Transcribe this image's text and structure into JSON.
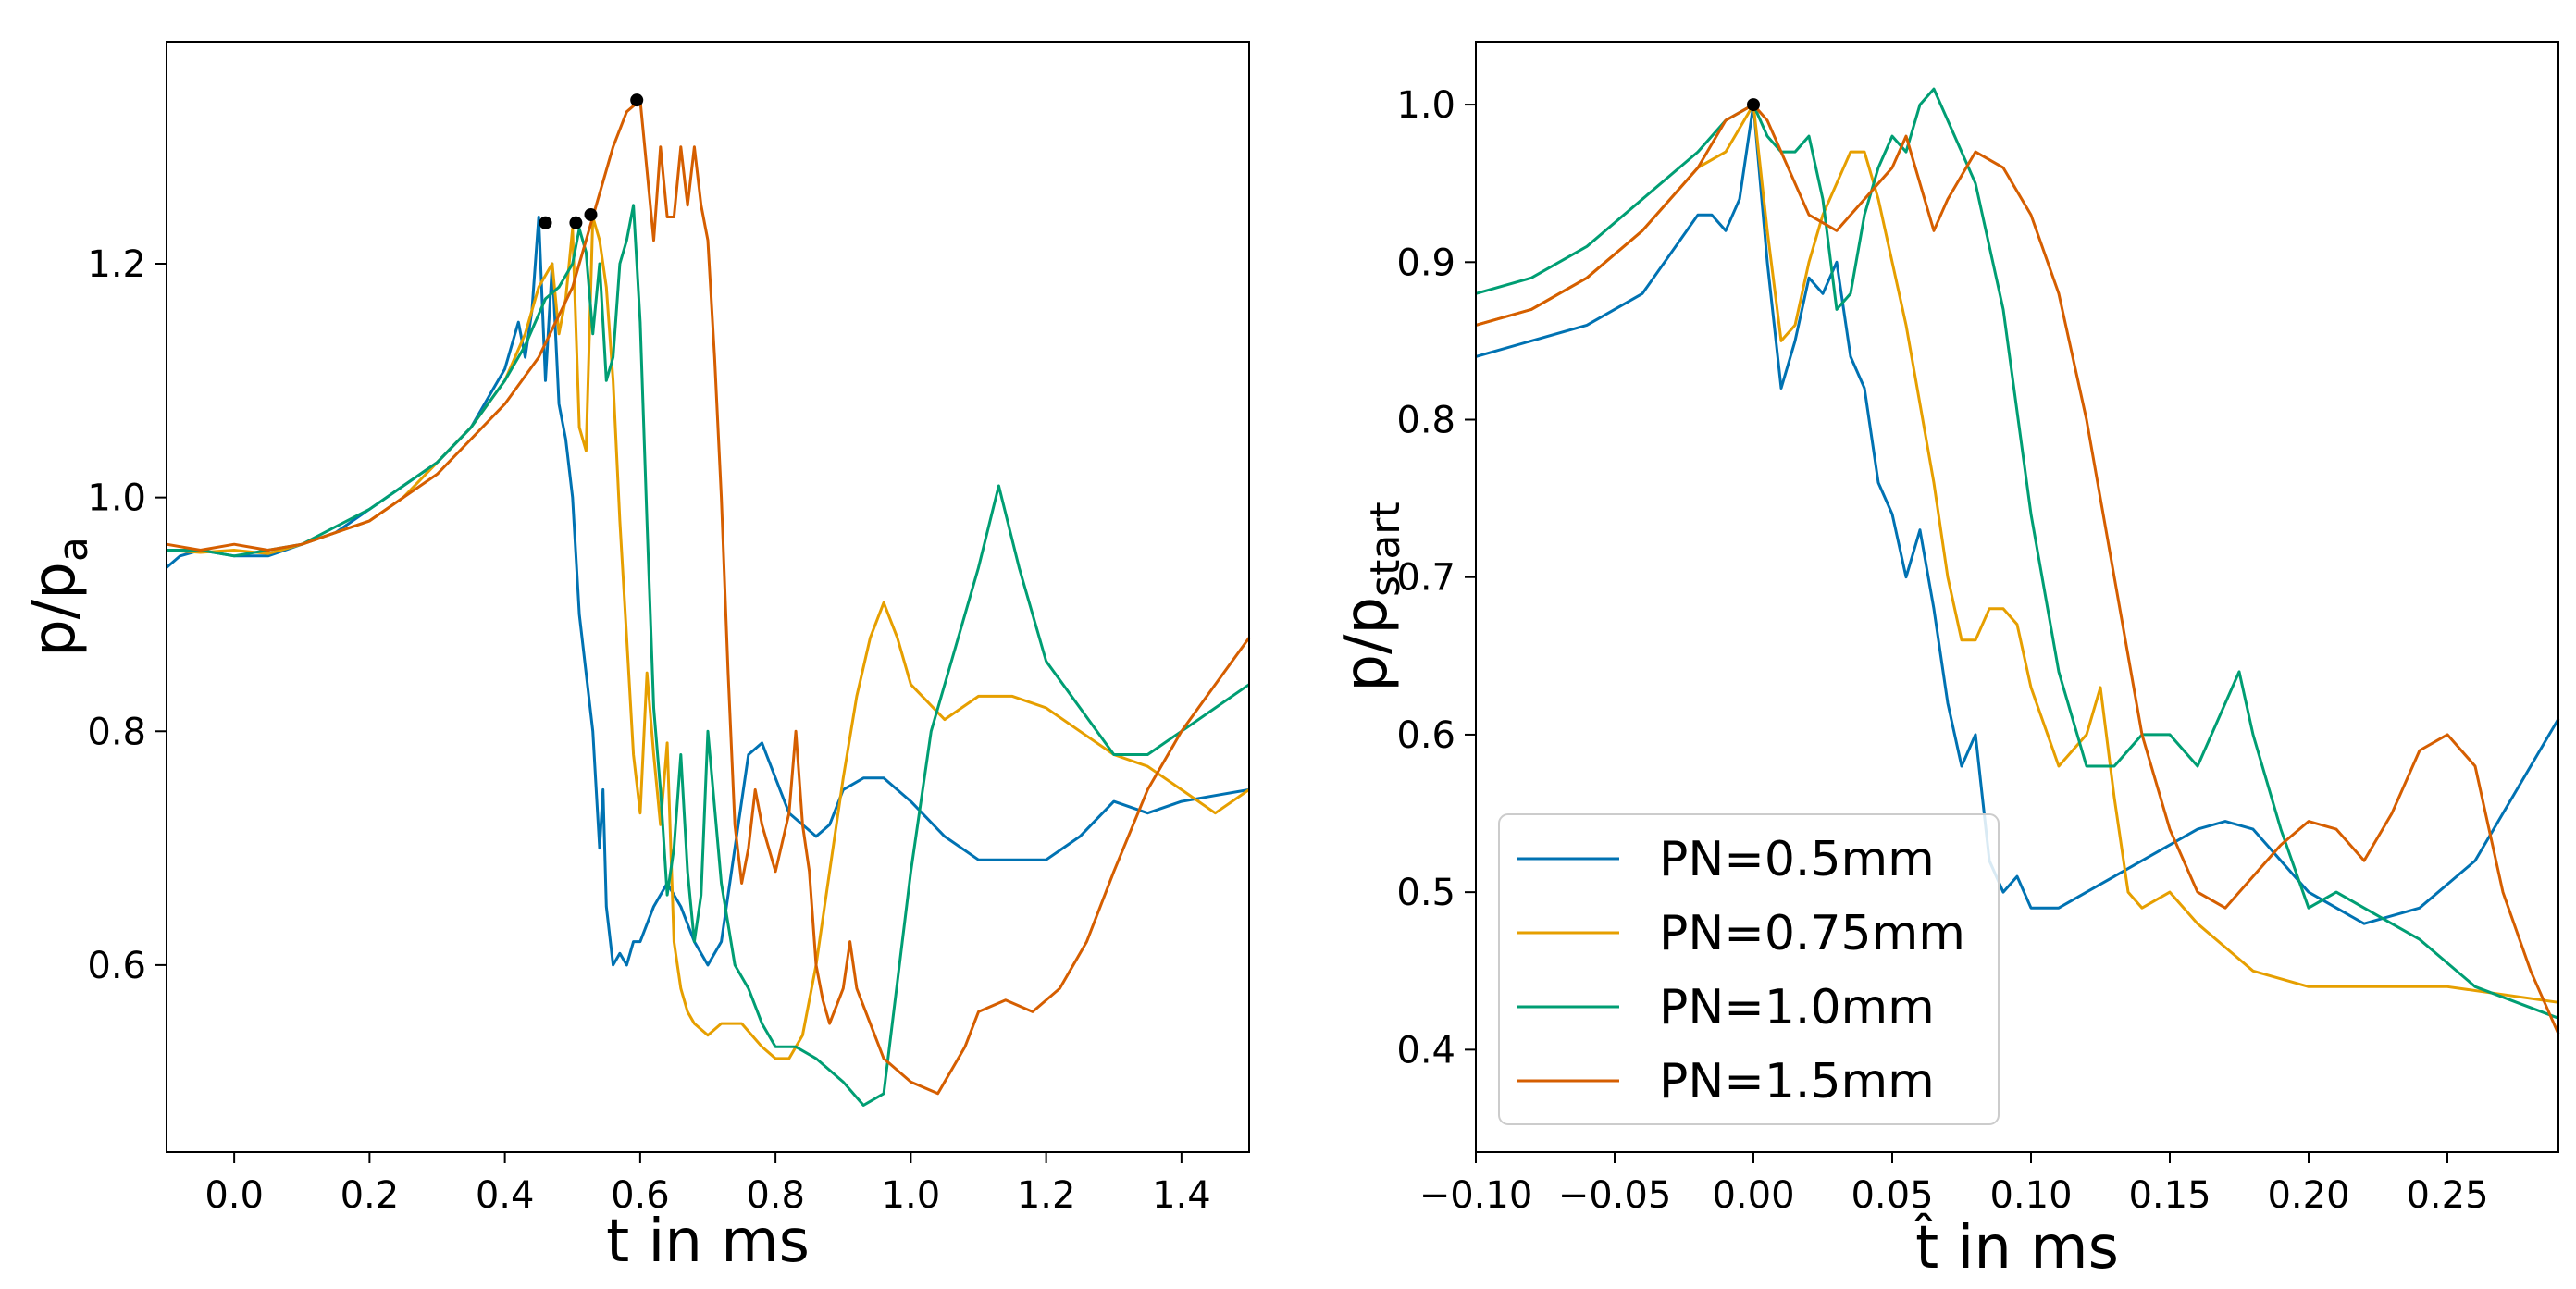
{
  "colors": {
    "PN05": "#0072b2",
    "PN075": "#e69f00",
    "PN10": "#009e73",
    "PN15": "#d55e00",
    "marker": "#000000"
  },
  "chart_data": [
    {
      "type": "line",
      "title": "",
      "xlabel": "t in ms",
      "ylabel": {
        "base": "p/p",
        "sub": "a"
      },
      "xlim": [
        -0.1,
        1.5
      ],
      "ylim": [
        0.44,
        1.39
      ],
      "xticks": [
        0.0,
        0.2,
        0.4,
        0.6,
        0.8,
        1.0,
        1.2,
        1.4
      ],
      "xtick_labels": [
        "0.0",
        "0.2",
        "0.4",
        "0.6",
        "0.8",
        "1.0",
        "1.2",
        "1.4"
      ],
      "yticks": [
        0.6,
        0.8,
        1.0,
        1.2
      ],
      "ytick_labels": [
        "0.6",
        "0.8",
        "1.0",
        "1.2"
      ],
      "series": [
        {
          "name": "PN=0.5mm",
          "color_key": "PN05",
          "x": [
            -0.1,
            -0.08,
            -0.05,
            -0.02,
            0.0,
            0.05,
            0.1,
            0.15,
            0.2,
            0.25,
            0.3,
            0.35,
            0.38,
            0.4,
            0.42,
            0.43,
            0.44,
            0.45,
            0.46,
            0.47,
            0.48,
            0.49,
            0.5,
            0.51,
            0.52,
            0.53,
            0.54,
            0.545,
            0.55,
            0.56,
            0.57,
            0.58,
            0.59,
            0.6,
            0.62,
            0.64,
            0.66,
            0.68,
            0.7,
            0.72,
            0.74,
            0.76,
            0.78,
            0.8,
            0.82,
            0.84,
            0.86,
            0.88,
            0.9,
            0.93,
            0.96,
            1.0,
            1.05,
            1.1,
            1.15,
            1.2,
            1.25,
            1.3,
            1.35,
            1.4,
            1.45,
            1.5
          ],
          "y": [
            0.94,
            0.95,
            0.955,
            0.952,
            0.95,
            0.95,
            0.96,
            0.97,
            0.99,
            1.01,
            1.03,
            1.06,
            1.09,
            1.11,
            1.15,
            1.12,
            1.16,
            1.24,
            1.1,
            1.2,
            1.08,
            1.05,
            1.0,
            0.9,
            0.85,
            0.8,
            0.7,
            0.75,
            0.65,
            0.6,
            0.61,
            0.6,
            0.62,
            0.62,
            0.65,
            0.67,
            0.65,
            0.62,
            0.6,
            0.62,
            0.7,
            0.78,
            0.79,
            0.76,
            0.73,
            0.72,
            0.71,
            0.72,
            0.75,
            0.76,
            0.76,
            0.74,
            0.71,
            0.69,
            0.69,
            0.69,
            0.71,
            0.74,
            0.73,
            0.74,
            0.745,
            0.75
          ]
        },
        {
          "name": "PN=0.75mm",
          "color_key": "PN075",
          "x": [
            -0.1,
            -0.05,
            0.0,
            0.05,
            0.1,
            0.15,
            0.2,
            0.25,
            0.3,
            0.35,
            0.4,
            0.43,
            0.45,
            0.47,
            0.48,
            0.49,
            0.5,
            0.51,
            0.52,
            0.53,
            0.54,
            0.55,
            0.56,
            0.57,
            0.58,
            0.59,
            0.6,
            0.61,
            0.62,
            0.63,
            0.64,
            0.65,
            0.66,
            0.67,
            0.68,
            0.7,
            0.72,
            0.75,
            0.78,
            0.8,
            0.82,
            0.84,
            0.86,
            0.88,
            0.9,
            0.92,
            0.94,
            0.96,
            0.98,
            1.0,
            1.05,
            1.1,
            1.15,
            1.2,
            1.25,
            1.3,
            1.35,
            1.4,
            1.45,
            1.5
          ],
          "y": [
            0.955,
            0.953,
            0.955,
            0.952,
            0.96,
            0.97,
            0.98,
            1.0,
            1.03,
            1.06,
            1.1,
            1.14,
            1.18,
            1.2,
            1.14,
            1.17,
            1.23,
            1.06,
            1.04,
            1.24,
            1.22,
            1.18,
            1.1,
            0.98,
            0.88,
            0.78,
            0.73,
            0.85,
            0.78,
            0.72,
            0.79,
            0.62,
            0.58,
            0.56,
            0.55,
            0.54,
            0.55,
            0.55,
            0.53,
            0.52,
            0.52,
            0.54,
            0.6,
            0.68,
            0.76,
            0.83,
            0.88,
            0.91,
            0.88,
            0.84,
            0.81,
            0.83,
            0.83,
            0.82,
            0.8,
            0.78,
            0.77,
            0.75,
            0.73,
            0.75
          ]
        },
        {
          "name": "PN=1.0mm",
          "color_key": "PN10",
          "x": [
            -0.1,
            -0.05,
            0.0,
            0.05,
            0.1,
            0.15,
            0.2,
            0.25,
            0.3,
            0.35,
            0.4,
            0.43,
            0.46,
            0.48,
            0.5,
            0.51,
            0.52,
            0.53,
            0.54,
            0.55,
            0.56,
            0.57,
            0.58,
            0.59,
            0.6,
            0.61,
            0.62,
            0.63,
            0.64,
            0.65,
            0.66,
            0.67,
            0.68,
            0.69,
            0.7,
            0.72,
            0.74,
            0.76,
            0.78,
            0.8,
            0.83,
            0.86,
            0.9,
            0.93,
            0.96,
            1.0,
            1.03,
            1.06,
            1.1,
            1.13,
            1.16,
            1.2,
            1.25,
            1.3,
            1.35,
            1.4,
            1.45,
            1.5
          ],
          "y": [
            0.955,
            0.955,
            0.95,
            0.955,
            0.96,
            0.975,
            0.99,
            1.01,
            1.03,
            1.06,
            1.1,
            1.13,
            1.17,
            1.18,
            1.2,
            1.23,
            1.21,
            1.14,
            1.2,
            1.1,
            1.12,
            1.2,
            1.22,
            1.25,
            1.15,
            0.98,
            0.82,
            0.75,
            0.66,
            0.7,
            0.78,
            0.68,
            0.62,
            0.66,
            0.8,
            0.67,
            0.6,
            0.58,
            0.55,
            0.53,
            0.53,
            0.52,
            0.5,
            0.48,
            0.49,
            0.68,
            0.8,
            0.86,
            0.94,
            1.01,
            0.94,
            0.86,
            0.82,
            0.78,
            0.78,
            0.8,
            0.82,
            0.84
          ]
        },
        {
          "name": "PN=1.5mm",
          "color_key": "PN15",
          "x": [
            -0.1,
            -0.05,
            0.0,
            0.05,
            0.1,
            0.15,
            0.2,
            0.25,
            0.3,
            0.35,
            0.4,
            0.45,
            0.5,
            0.52,
            0.54,
            0.56,
            0.58,
            0.6,
            0.61,
            0.62,
            0.63,
            0.64,
            0.65,
            0.66,
            0.67,
            0.68,
            0.69,
            0.7,
            0.71,
            0.72,
            0.73,
            0.74,
            0.75,
            0.76,
            0.77,
            0.78,
            0.8,
            0.82,
            0.83,
            0.84,
            0.85,
            0.86,
            0.87,
            0.88,
            0.9,
            0.91,
            0.92,
            0.94,
            0.96,
            1.0,
            1.04,
            1.08,
            1.1,
            1.14,
            1.18,
            1.22,
            1.26,
            1.3,
            1.35,
            1.4,
            1.45,
            1.5
          ],
          "y": [
            0.96,
            0.955,
            0.96,
            0.955,
            0.96,
            0.97,
            0.98,
            1.0,
            1.02,
            1.05,
            1.08,
            1.12,
            1.18,
            1.22,
            1.26,
            1.3,
            1.33,
            1.34,
            1.28,
            1.22,
            1.3,
            1.24,
            1.24,
            1.3,
            1.25,
            1.3,
            1.25,
            1.22,
            1.12,
            1.0,
            0.85,
            0.72,
            0.67,
            0.7,
            0.75,
            0.72,
            0.68,
            0.73,
            0.8,
            0.72,
            0.68,
            0.6,
            0.57,
            0.55,
            0.58,
            0.62,
            0.58,
            0.55,
            0.52,
            0.5,
            0.49,
            0.53,
            0.56,
            0.57,
            0.56,
            0.58,
            0.62,
            0.68,
            0.75,
            0.8,
            0.84,
            0.88
          ]
        }
      ],
      "peak_markers": [
        {
          "x": 0.46,
          "y": 1.235,
          "color_key": "marker"
        },
        {
          "x": 0.505,
          "y": 1.235,
          "color_key": "marker"
        },
        {
          "x": 0.527,
          "y": 1.242,
          "color_key": "marker"
        },
        {
          "x": 0.595,
          "y": 1.34,
          "color_key": "marker"
        }
      ]
    },
    {
      "type": "line",
      "title": "",
      "xlabel": "t̂ in ms",
      "ylabel": {
        "base": "p/p",
        "sub": "start"
      },
      "xlim": [
        -0.1,
        0.29
      ],
      "ylim": [
        0.335,
        1.04
      ],
      "xticks": [
        -0.1,
        -0.05,
        0.0,
        0.05,
        0.1,
        0.15,
        0.2,
        0.25
      ],
      "xtick_labels": [
        "−0.10",
        "−0.05",
        "0.00",
        "0.05",
        "0.10",
        "0.15",
        "0.20",
        "0.25"
      ],
      "yticks": [
        0.4,
        0.5,
        0.6,
        0.7,
        0.8,
        0.9,
        1.0
      ],
      "ytick_labels": [
        "0.4",
        "0.5",
        "0.6",
        "0.7",
        "0.8",
        "0.9",
        "1.0"
      ],
      "legend": {
        "position": "lower-left",
        "entries": [
          "PN=0.5mm",
          "PN=0.75mm",
          "PN=1.0mm",
          "PN=1.5mm"
        ]
      },
      "series": [
        {
          "name": "PN=0.5mm",
          "color_key": "PN05",
          "x": [
            -0.1,
            -0.08,
            -0.06,
            -0.04,
            -0.02,
            -0.015,
            -0.01,
            -0.005,
            0.0,
            0.005,
            0.01,
            0.015,
            0.02,
            0.025,
            0.03,
            0.035,
            0.04,
            0.045,
            0.05,
            0.055,
            0.06,
            0.065,
            0.07,
            0.075,
            0.08,
            0.085,
            0.09,
            0.095,
            0.1,
            0.11,
            0.12,
            0.14,
            0.16,
            0.17,
            0.18,
            0.2,
            0.22,
            0.24,
            0.26,
            0.29
          ],
          "y": [
            0.84,
            0.85,
            0.86,
            0.88,
            0.93,
            0.93,
            0.92,
            0.94,
            1.0,
            0.9,
            0.82,
            0.85,
            0.89,
            0.88,
            0.9,
            0.84,
            0.82,
            0.76,
            0.74,
            0.7,
            0.73,
            0.68,
            0.62,
            0.58,
            0.6,
            0.52,
            0.5,
            0.51,
            0.49,
            0.49,
            0.5,
            0.52,
            0.54,
            0.545,
            0.54,
            0.5,
            0.48,
            0.49,
            0.52,
            0.61
          ]
        },
        {
          "name": "PN=0.75mm",
          "color_key": "PN075",
          "x": [
            -0.1,
            -0.08,
            -0.06,
            -0.04,
            -0.02,
            -0.01,
            0.0,
            0.005,
            0.01,
            0.015,
            0.02,
            0.025,
            0.03,
            0.035,
            0.04,
            0.045,
            0.05,
            0.055,
            0.06,
            0.065,
            0.07,
            0.075,
            0.08,
            0.085,
            0.09,
            0.095,
            0.1,
            0.11,
            0.12,
            0.125,
            0.13,
            0.135,
            0.14,
            0.15,
            0.16,
            0.18,
            0.2,
            0.22,
            0.25,
            0.29
          ],
          "y": [
            0.86,
            0.87,
            0.89,
            0.92,
            0.96,
            0.97,
            1.0,
            0.92,
            0.85,
            0.86,
            0.9,
            0.93,
            0.95,
            0.97,
            0.97,
            0.94,
            0.9,
            0.86,
            0.81,
            0.76,
            0.7,
            0.66,
            0.66,
            0.68,
            0.68,
            0.67,
            0.63,
            0.58,
            0.6,
            0.63,
            0.56,
            0.5,
            0.49,
            0.5,
            0.48,
            0.45,
            0.44,
            0.44,
            0.44,
            0.43
          ]
        },
        {
          "name": "PN=1.0mm",
          "color_key": "PN10",
          "x": [
            -0.1,
            -0.08,
            -0.06,
            -0.04,
            -0.02,
            -0.01,
            0.0,
            0.005,
            0.01,
            0.015,
            0.02,
            0.025,
            0.03,
            0.035,
            0.04,
            0.045,
            0.05,
            0.055,
            0.06,
            0.065,
            0.07,
            0.075,
            0.08,
            0.09,
            0.1,
            0.11,
            0.12,
            0.13,
            0.14,
            0.15,
            0.16,
            0.17,
            0.175,
            0.18,
            0.19,
            0.2,
            0.21,
            0.22,
            0.24,
            0.26,
            0.29
          ],
          "y": [
            0.88,
            0.89,
            0.91,
            0.94,
            0.97,
            0.99,
            1.0,
            0.98,
            0.97,
            0.97,
            0.98,
            0.94,
            0.87,
            0.88,
            0.93,
            0.96,
            0.98,
            0.97,
            1.0,
            1.01,
            0.99,
            0.97,
            0.95,
            0.87,
            0.74,
            0.64,
            0.58,
            0.58,
            0.6,
            0.6,
            0.58,
            0.62,
            0.64,
            0.6,
            0.54,
            0.49,
            0.5,
            0.49,
            0.47,
            0.44,
            0.42
          ]
        },
        {
          "name": "PN=1.5mm",
          "color_key": "PN15",
          "x": [
            -0.1,
            -0.08,
            -0.06,
            -0.04,
            -0.02,
            -0.01,
            0.0,
            0.005,
            0.01,
            0.02,
            0.03,
            0.04,
            0.05,
            0.055,
            0.06,
            0.065,
            0.07,
            0.08,
            0.09,
            0.1,
            0.11,
            0.12,
            0.13,
            0.14,
            0.15,
            0.16,
            0.17,
            0.18,
            0.19,
            0.2,
            0.21,
            0.22,
            0.23,
            0.24,
            0.25,
            0.26,
            0.27,
            0.28,
            0.29
          ],
          "y": [
            0.86,
            0.87,
            0.89,
            0.92,
            0.96,
            0.99,
            1.0,
            0.99,
            0.97,
            0.93,
            0.92,
            0.94,
            0.96,
            0.98,
            0.95,
            0.92,
            0.94,
            0.97,
            0.96,
            0.93,
            0.88,
            0.8,
            0.7,
            0.6,
            0.54,
            0.5,
            0.49,
            0.51,
            0.53,
            0.545,
            0.54,
            0.52,
            0.55,
            0.59,
            0.6,
            0.58,
            0.5,
            0.45,
            0.41
          ]
        }
      ],
      "peak_markers": [
        {
          "x": 0.0,
          "y": 1.0,
          "color_key": "marker"
        }
      ]
    }
  ]
}
